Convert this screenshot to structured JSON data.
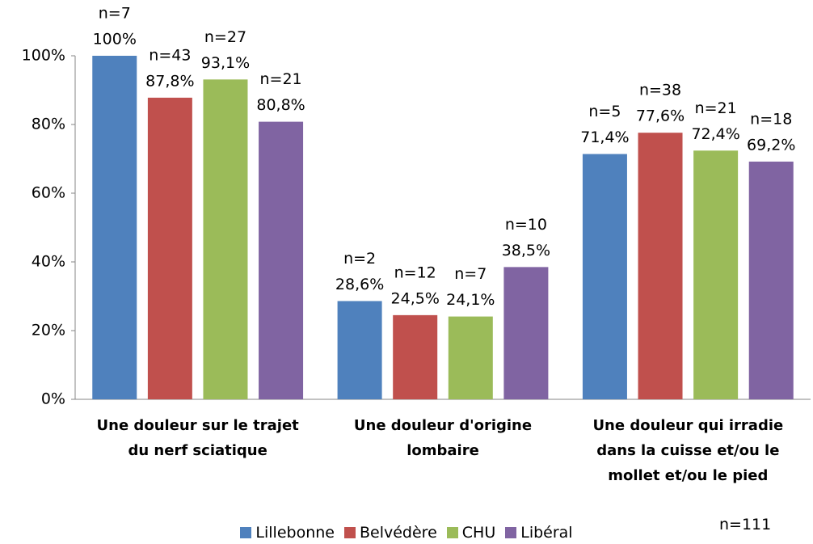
{
  "chart_data": {
    "type": "bar",
    "categories": [
      "Une douleur sur le trajet du nerf sciatique",
      "Une douleur d'origine lombaire",
      "Une douleur qui irradie dans la cuisse et/ou le mollet et/ou le pied"
    ],
    "series": [
      {
        "name": "Lillebonne",
        "color": "#4f81bd",
        "values": [
          100,
          28.6,
          71.4
        ],
        "value_labels": [
          "100%",
          "28,6%",
          "71,4%"
        ],
        "n_labels": [
          "n=7",
          "n=2",
          "n=5"
        ]
      },
      {
        "name": "Belvédère",
        "color": "#c0504d",
        "values": [
          87.8,
          24.5,
          77.6
        ],
        "value_labels": [
          "87,8%",
          "24,5%",
          "77,6%"
        ],
        "n_labels": [
          "n=43",
          "n=12",
          "n=38"
        ]
      },
      {
        "name": "CHU",
        "color": "#9bbb59",
        "values": [
          93.1,
          24.1,
          72.4
        ],
        "value_labels": [
          "93,1%",
          "24,1%",
          "72,4%"
        ],
        "n_labels": [
          "n=27",
          "n=7",
          "n=21"
        ]
      },
      {
        "name": "Libéral",
        "color": "#8064a2",
        "values": [
          80.8,
          38.5,
          69.2
        ],
        "value_labels": [
          "80,8%",
          "38,5%",
          "69,2%"
        ],
        "n_labels": [
          "n=21",
          "n=10",
          "n=18"
        ]
      }
    ],
    "ylim": [
      0,
      100
    ],
    "yticks": [
      {
        "value": 0,
        "label": "0%"
      },
      {
        "value": 20,
        "label": "20%"
      },
      {
        "value": 40,
        "label": "40%"
      },
      {
        "value": 60,
        "label": "60%"
      },
      {
        "value": 80,
        "label": "80%"
      },
      {
        "value": 100,
        "label": "100%"
      }
    ],
    "grid": false,
    "legend": "bottom",
    "annotation": "n=111"
  }
}
